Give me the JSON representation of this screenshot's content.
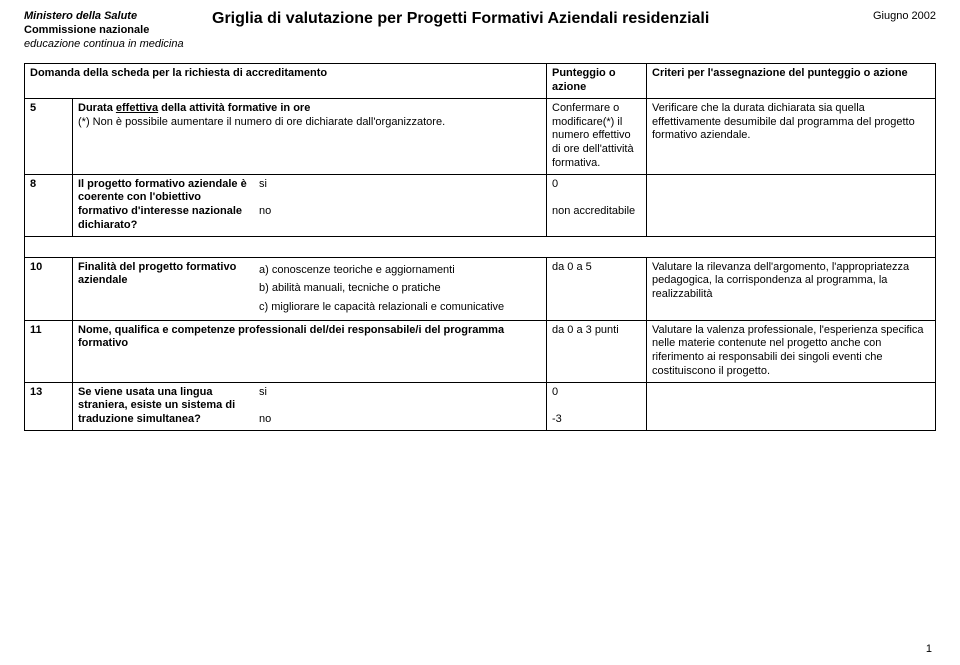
{
  "header": {
    "left_line1": "Ministero della Salute",
    "left_line2": "Commissione nazionale",
    "left_line3": "educazione continua in medicina",
    "title": "Griglia di valutazione per Progetti Formativi Aziendali residenziali",
    "right_date": "Giugno 2002"
  },
  "table_headers": {
    "col_a": "Domanda della scheda per la richiesta di accreditamento",
    "col_b": "Punteggio o azione",
    "col_c": "Criteri per l'assegnazione del punteggio o azione"
  },
  "row5": {
    "num": "5",
    "question_part1": "Durata ",
    "question_underline": "effettiva",
    "question_part2": " della attività formative in ore",
    "note": "(*) Non è possibile aumentare il numero di ore dichiarate dall'organizzatore.",
    "col_b": "Confermare o modificare(*) il numero effettivo di ore dell'attività formativa.",
    "col_c": "Verificare che la durata dichiarata sia quella effettivamente desumibile dal programma del progetto formativo aziendale."
  },
  "row8": {
    "num": "8",
    "question": "Il progetto formativo aziendale è coerente con l'obiettivo formativo d'interesse nazionale dichiarato?",
    "opts_right": "si\n\nno",
    "col_b": "0\n\nnon accreditabile",
    "col_c": ""
  },
  "row10": {
    "num": "10",
    "question": "Finalità del progetto formativo aziendale",
    "opts_right": "a) conoscenze teoriche e aggiornamenti\nb) abilità manuali, tecniche o pratiche\nc) migliorare le capacità relazionali e comunicative",
    "col_b": "da 0 a 5",
    "col_c": "Valutare la rilevanza dell'argomento, l'appropriatezza pedagogica, la corrispondenza al programma, la realizzabilità"
  },
  "row11": {
    "num": "11",
    "question": "Nome, qualifica e competenze professionali del/dei responsabile/i del programma formativo",
    "col_b": "da 0 a 3 punti",
    "col_c": "Valutare la valenza professionale, l'esperienza specifica nelle materie contenute nel progetto anche con riferimento ai responsabili dei singoli eventi che costituiscono il progetto."
  },
  "row13": {
    "num": "13",
    "question": "Se viene usata una lingua straniera, esiste un sistema di traduzione simultanea?",
    "opts_right": "si\n\nno",
    "col_b": "0\n\n-3",
    "col_c": ""
  },
  "page_number": "1"
}
